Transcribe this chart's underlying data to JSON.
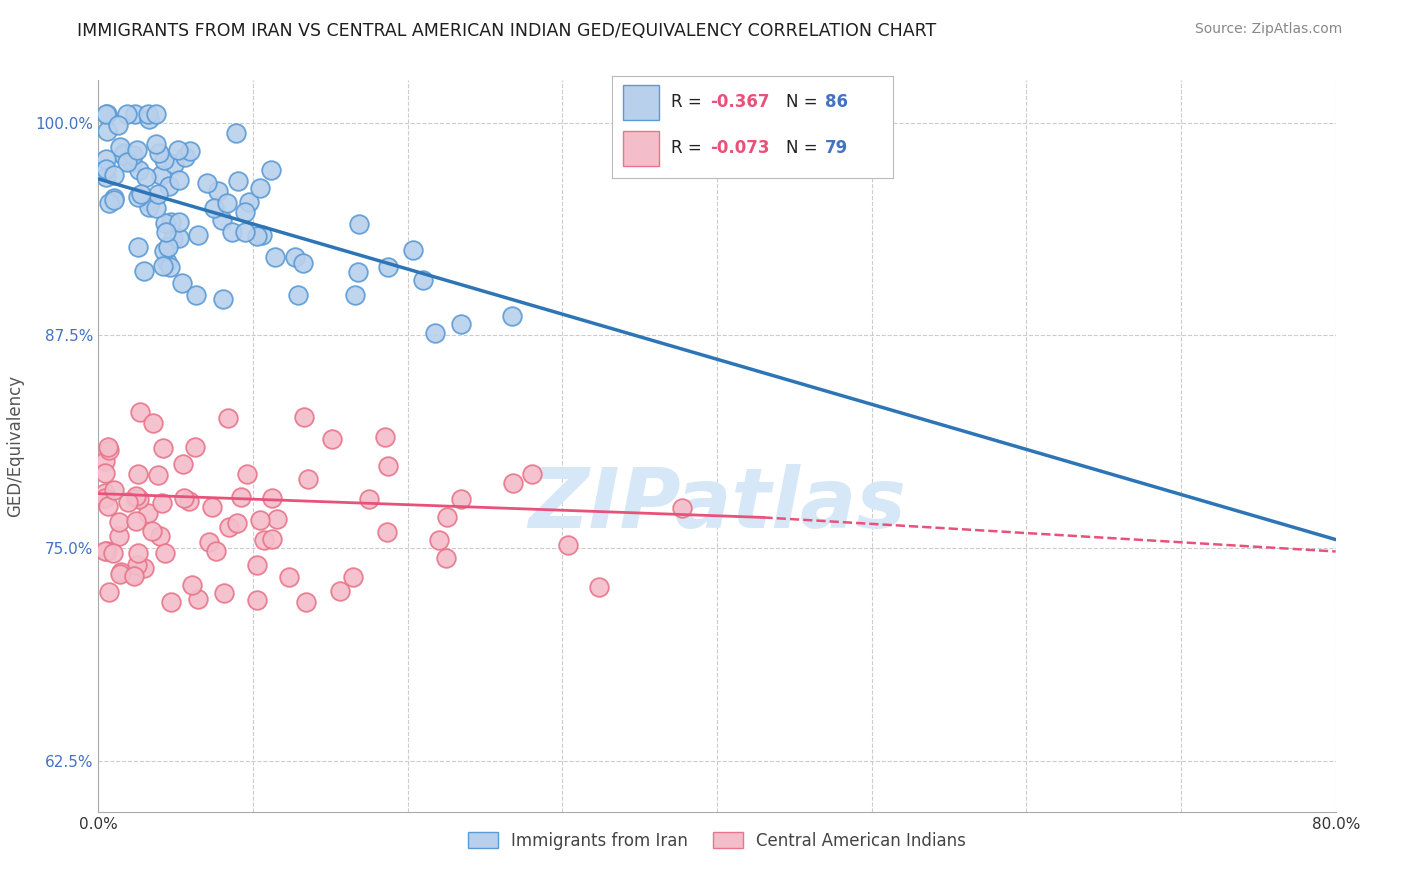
{
  "title": "IMMIGRANTS FROM IRAN VS CENTRAL AMERICAN INDIAN GED/EQUIVALENCY CORRELATION CHART",
  "source": "Source: ZipAtlas.com",
  "ylabel": "GED/Equivalency",
  "xlim": [
    0.0,
    0.8
  ],
  "ylim": [
    0.595,
    1.025
  ],
  "xticks": [
    0.0,
    0.1,
    0.2,
    0.3,
    0.4,
    0.5,
    0.6,
    0.7,
    0.8
  ],
  "yticks": [
    0.625,
    0.75,
    0.875,
    1.0
  ],
  "yticklabels": [
    "62.5%",
    "75.0%",
    "87.5%",
    "100.0%"
  ],
  "series1_label": "Immigrants from Iran",
  "series1_R": -0.367,
  "series1_N": 86,
  "series1_face": "#B8D0EC",
  "series1_edge": "#5B9BD5",
  "series2_label": "Central American Indians",
  "series2_R": -0.073,
  "series2_N": 79,
  "series2_face": "#F4BDCA",
  "series2_edge": "#E8758A",
  "line1_color": "#2E75B6",
  "line2_color": "#E8527A",
  "watermark": "ZIPatlas",
  "watermark_color": "#D6E8F7",
  "background_color": "#FFFFFF",
  "grid_color": "#CCCCCC",
  "title_color": "#1F1F1F",
  "axis_label_color": "#555555",
  "ytick_color": "#4472C4",
  "legend_R_color": "#E8527A",
  "legend_N_color": "#4472C4"
}
